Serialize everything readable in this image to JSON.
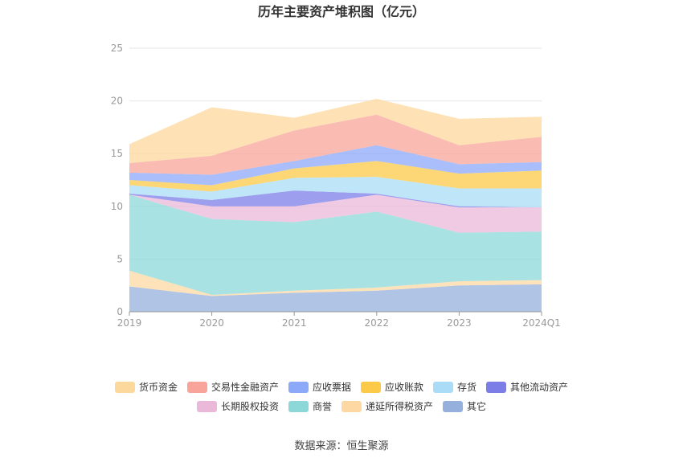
{
  "chart_data": {
    "type": "area",
    "stacked": true,
    "title": "历年主要资产堆积图（亿元）",
    "unit": "亿元",
    "x": [
      "2019",
      "2020",
      "2021",
      "2022",
      "2023",
      "2024Q1"
    ],
    "ylim": [
      0,
      25
    ],
    "yticks": [
      "0",
      "5",
      "10",
      "15",
      "20",
      "25"
    ],
    "grid": true,
    "legend_position": "bottom",
    "series": [
      {
        "name": "其它",
        "color": "#95b0dc",
        "values": [
          2.4,
          1.5,
          1.8,
          2.0,
          2.5,
          2.6
        ]
      },
      {
        "name": "递延所得税资产",
        "color": "#fdd8a3",
        "values": [
          1.5,
          0.1,
          0.2,
          0.3,
          0.4,
          0.4
        ]
      },
      {
        "name": "商誉",
        "color": "#8cd8d8",
        "values": [
          7.2,
          7.2,
          6.5,
          7.2,
          4.6,
          4.6
        ]
      },
      {
        "name": "长期股权投资",
        "color": "#eab8d8",
        "values": [
          0.0,
          1.2,
          1.5,
          1.6,
          2.4,
          2.3
        ]
      },
      {
        "name": "其他流动资产",
        "color": "#7d7de8",
        "values": [
          0.1,
          0.6,
          1.5,
          0.1,
          0.1,
          0.0
        ]
      },
      {
        "name": "存货",
        "color": "#aadcf7",
        "values": [
          0.8,
          0.8,
          1.2,
          1.6,
          1.7,
          1.8
        ]
      },
      {
        "name": "应收账款",
        "color": "#fcc948",
        "values": [
          0.5,
          0.6,
          0.9,
          1.5,
          1.4,
          1.7
        ]
      },
      {
        "name": "应收票据",
        "color": "#8ca8f8",
        "values": [
          0.7,
          1.0,
          0.7,
          1.5,
          0.9,
          0.8
        ]
      },
      {
        "name": "交易性金融资产",
        "color": "#f8a49a",
        "values": [
          0.9,
          1.8,
          2.9,
          2.9,
          1.8,
          2.4
        ]
      },
      {
        "name": "货币资金",
        "color": "#fdd89c",
        "values": [
          1.8,
          4.6,
          1.2,
          1.5,
          2.5,
          1.9
        ]
      }
    ],
    "legend_order": [
      "货币资金",
      "交易性金融资产",
      "应收票据",
      "应收账款",
      "存货",
      "其他流动资产",
      "长期股权投资",
      "商誉",
      "递延所得税资产",
      "其它"
    ]
  },
  "source_label": "数据来源：恒生聚源"
}
